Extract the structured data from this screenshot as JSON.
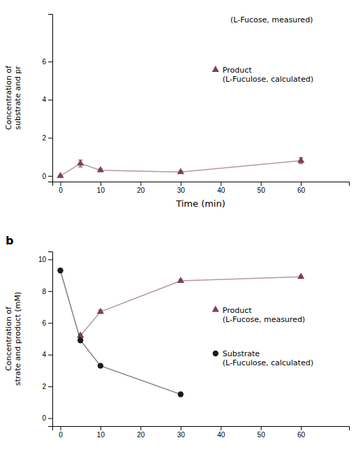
{
  "chart_data": [
    {
      "type": "line",
      "xlabel": "Time (min)",
      "ylabel": "Concentration of\nsubstrate and pr",
      "annotations": [
        "(L-Fucose, measured)"
      ],
      "legend": "right",
      "grid": false,
      "xlim": [
        -2,
        72
      ],
      "xticks": [
        0,
        10,
        20,
        30,
        40,
        50,
        60
      ],
      "ylim": [
        -0.3,
        8.5
      ],
      "yticks": [
        0,
        2,
        4,
        6
      ],
      "series": [
        {
          "name": "Product\n(L-Fuculose, calculated)",
          "color": "#7B3F5E",
          "marker": "triangle",
          "line_style": "solid",
          "x": [
            0,
            5,
            10,
            30,
            60
          ],
          "values": [
            0.0,
            0.65,
            0.3,
            0.2,
            0.8
          ],
          "errors": [
            0.0,
            0.18,
            0.07,
            0.06,
            0.15
          ]
        }
      ]
    },
    {
      "type": "line",
      "title": "b",
      "ylabel": "Concentration of\nstrate and product (mM)",
      "legend": "right",
      "grid": false,
      "xlim": [
        -2,
        72
      ],
      "xticks": [
        0,
        10,
        20,
        30,
        40,
        50,
        60
      ],
      "ylim": [
        -0.5,
        10.5
      ],
      "yticks": [
        0,
        2,
        4,
        6,
        8,
        10
      ],
      "series": [
        {
          "name": "Product\n(L-Fucose, measured)",
          "color": "#7B3F5E",
          "marker": "triangle",
          "line_style": "solid",
          "x": [
            5,
            10,
            30,
            60
          ],
          "values": [
            5.2,
            6.7,
            8.65,
            8.9
          ],
          "errors": [
            0.12,
            0.1,
            0.08,
            0.08
          ]
        },
        {
          "name": "Substrate\n(L-Fuculose, calculated)",
          "color": "#1a1a1a",
          "marker": "circle",
          "line_style": "solid",
          "x": [
            0,
            5,
            10,
            30
          ],
          "values": [
            9.3,
            4.9,
            3.3,
            1.5
          ],
          "errors": [
            0.0,
            0.12,
            0.08,
            0.08
          ]
        }
      ]
    }
  ]
}
